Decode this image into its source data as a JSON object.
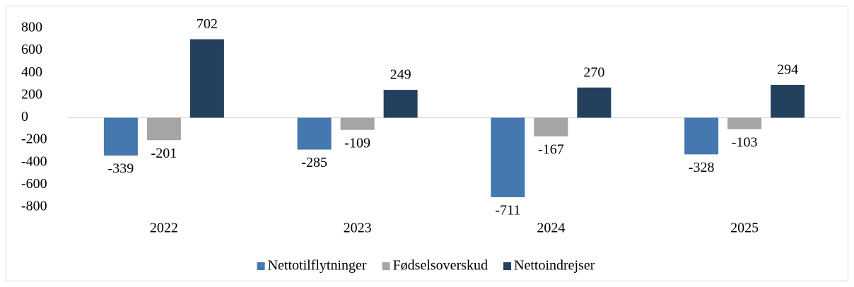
{
  "chart_data": {
    "type": "bar",
    "categories": [
      "2022",
      "2023",
      "2024",
      "2025"
    ],
    "series": [
      {
        "name": "Nettotilflytninger",
        "color": "#4478ae",
        "values": [
          -339,
          -285,
          -711,
          -328
        ]
      },
      {
        "name": "Fødselsoverskud",
        "color": "#a5a5a5",
        "values": [
          -201,
          -109,
          -167,
          -103
        ]
      },
      {
        "name": "Nettoindrejser",
        "color": "#23405f",
        "values": [
          702,
          249,
          270,
          294
        ]
      }
    ],
    "ylim": [
      -800,
      800
    ],
    "yticks": [
      -800,
      -600,
      -400,
      -200,
      0,
      200,
      400,
      600,
      800
    ],
    "grid": false,
    "legend": "bottom"
  }
}
